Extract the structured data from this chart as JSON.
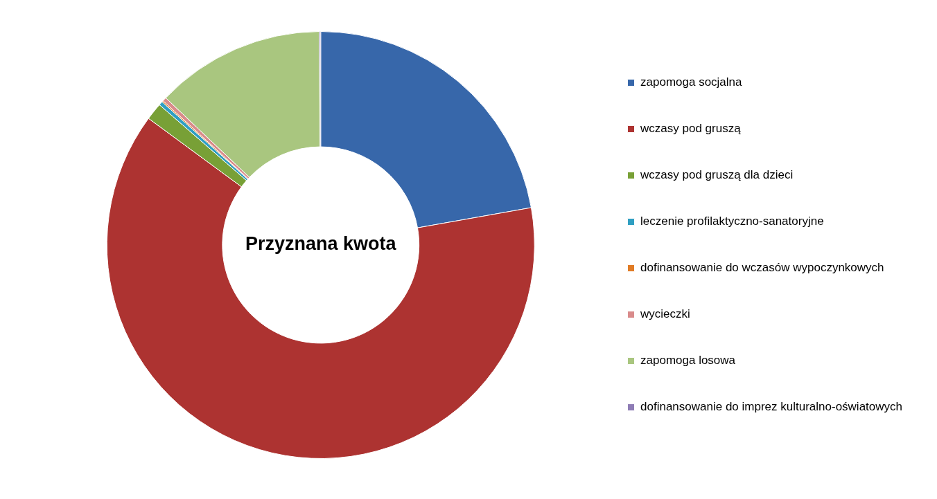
{
  "chart_data": {
    "type": "donut",
    "title": "Przyznana kwota",
    "categories": [
      "zapomoga socjalna",
      "wczasy pod gruszą",
      "wczasy pod gruszą dla dzieci",
      "leczenie profilaktyczno-sanatoryjne",
      "dofinansowanie do wczasów wypoczynkowych",
      "wycieczki",
      "zapomoga losowa",
      "dofinansowanie do imprez kulturalno-oświatowych"
    ],
    "values": [
      22.2,
      62.9,
      1.3,
      0.3,
      0.1,
      0.3,
      12.8,
      0.1
    ],
    "colors": [
      "#3767aa",
      "#ad3331",
      "#78a036",
      "#2f9fc2",
      "#e07b25",
      "#d98b8b",
      "#a9c67f",
      "#8e7cb5"
    ],
    "legend": "right"
  }
}
